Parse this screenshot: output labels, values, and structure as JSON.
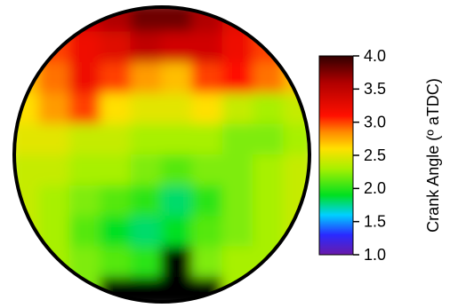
{
  "chart_data": {
    "type": "heatmap",
    "colorbar_label": "Crank Angle (º aTDC)",
    "zlim": [
      1,
      4
    ],
    "zticks": [
      {
        "value": 1,
        "label": "1.0"
      },
      {
        "value": 1.5,
        "label": "1.5"
      },
      {
        "value": 2,
        "label": "2.0"
      },
      {
        "value": 2.5,
        "label": "2.5"
      },
      {
        "value": 3,
        "label": "3.0"
      },
      {
        "value": 3.5,
        "label": "3.5"
      },
      {
        "value": 4,
        "label": "4.0"
      }
    ],
    "colormap": [
      {
        "value": 1,
        "color": "#6a1aa8"
      },
      {
        "value": 1.3,
        "color": "#2a2aff"
      },
      {
        "value": 1.6,
        "color": "#00d0ff"
      },
      {
        "value": 1.9,
        "color": "#00e020"
      },
      {
        "value": 2.3,
        "color": "#a8f000"
      },
      {
        "value": 2.6,
        "color": "#ffe000"
      },
      {
        "value": 2.85,
        "color": "#ff8a00"
      },
      {
        "value": 3.1,
        "color": "#ff1000"
      },
      {
        "value": 3.6,
        "color": "#b00000"
      },
      {
        "value": 4,
        "color": "#300000"
      }
    ],
    "missing_color": "#000000",
    "z": [
      [
        3.2,
        3.3,
        3.4,
        3.6,
        3.8,
        3.8,
        3.6,
        3.3,
        3.2,
        3.0
      ],
      [
        2.8,
        3.0,
        3.2,
        3.3,
        3.5,
        3.4,
        3.4,
        3.2,
        3.0,
        2.8
      ],
      [
        2.7,
        2.9,
        3.2,
        3.0,
        2.8,
        2.7,
        3.0,
        3.1,
        2.9,
        2.7
      ],
      [
        2.6,
        2.8,
        3.0,
        2.6,
        2.5,
        2.5,
        2.6,
        2.4,
        2.3,
        2.4
      ],
      [
        2.5,
        2.5,
        2.4,
        2.4,
        2.3,
        2.3,
        2.3,
        2.2,
        2.2,
        2.3
      ],
      [
        2.4,
        2.4,
        2.3,
        2.3,
        2.2,
        2.1,
        2.2,
        2.2,
        2.3,
        2.4
      ],
      [
        2.4,
        2.3,
        2.2,
        2.1,
        2.0,
        1.8,
        2.0,
        2.2,
        2.3,
        2.4
      ],
      [
        2.4,
        2.3,
        2.1,
        1.9,
        1.8,
        1.9,
        2.1,
        2.2,
        2.3,
        2.4
      ],
      [
        2.3,
        2.3,
        2.2,
        2.1,
        2.0,
        null,
        2.2,
        2.3,
        2.3,
        2.3
      ],
      [
        2.3,
        2.3,
        2.2,
        null,
        null,
        null,
        null,
        2.3,
        2.4,
        2.4
      ]
    ]
  }
}
